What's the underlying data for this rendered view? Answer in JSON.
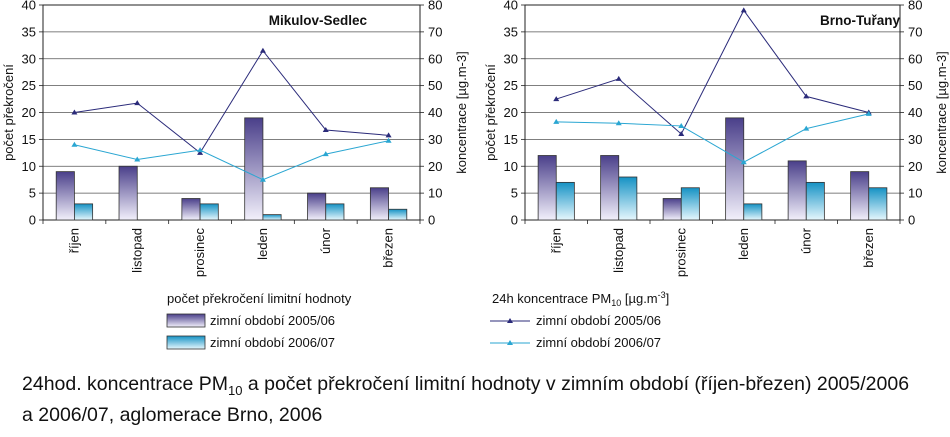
{
  "chart_data": [
    {
      "type": "bar",
      "title": "Mikulov-Sedlec",
      "categories": [
        "říjen",
        "listopad",
        "prosinec",
        "leden",
        "únor",
        "březen"
      ],
      "ylabel": "počet překročení",
      "y2label": "koncentrace [µg.m-3]",
      "ylim": [
        0,
        40
      ],
      "y2lim": [
        0,
        80
      ],
      "yticks": [
        "0",
        "5",
        "10",
        "15",
        "20",
        "25",
        "30",
        "35",
        "40"
      ],
      "y2ticks": [
        "0",
        "10",
        "20",
        "30",
        "40",
        "50",
        "60",
        "70",
        "80"
      ],
      "series": [
        {
          "name": "zimní období 2005/06",
          "kind": "bar",
          "axis": "left",
          "color": "#5a4f96",
          "values": [
            9,
            10,
            4,
            19,
            5,
            6
          ]
        },
        {
          "name": "zimní období 2006/07",
          "kind": "bar",
          "axis": "left",
          "color": "#1e9fcc",
          "values": [
            3,
            0,
            3,
            1,
            3,
            2
          ]
        },
        {
          "name": "zimní období 2005/06",
          "kind": "line",
          "axis": "right",
          "color": "#2b2b7a",
          "values": [
            40,
            43.5,
            25,
            63,
            33.5,
            31.5
          ]
        },
        {
          "name": "zimní období 2006/07",
          "kind": "line",
          "axis": "right",
          "color": "#2aa6d2",
          "values": [
            28,
            22.5,
            26,
            15,
            24.5,
            29.5
          ]
        }
      ]
    },
    {
      "type": "bar",
      "title": "Brno-Tuřany",
      "categories": [
        "říjen",
        "listopad",
        "prosinec",
        "leden",
        "únor",
        "březen"
      ],
      "ylabel": "počet překročení",
      "y2label": "koncentrace [µg.m-3]",
      "ylim": [
        0,
        40
      ],
      "y2lim": [
        0,
        80
      ],
      "yticks": [
        "0",
        "5",
        "10",
        "15",
        "20",
        "25",
        "30",
        "35",
        "40"
      ],
      "y2ticks": [
        "0",
        "10",
        "20",
        "30",
        "40",
        "50",
        "60",
        "70",
        "80"
      ],
      "series": [
        {
          "name": "zimní období 2005/06",
          "kind": "bar",
          "axis": "left",
          "color": "#5a4f96",
          "values": [
            12,
            12,
            4,
            19,
            11,
            9
          ]
        },
        {
          "name": "zimní období 2006/07",
          "kind": "bar",
          "axis": "left",
          "color": "#1e9fcc",
          "values": [
            7,
            8,
            6,
            3,
            7,
            6
          ]
        },
        {
          "name": "zimní období 2005/06",
          "kind": "line",
          "axis": "right",
          "color": "#2b2b7a",
          "values": [
            45,
            52.5,
            32,
            78,
            46,
            40
          ]
        },
        {
          "name": "zimní období 2006/07",
          "kind": "line",
          "axis": "right",
          "color": "#2aa6d2",
          "values": [
            36.5,
            36,
            35,
            21.5,
            34,
            39.5
          ]
        }
      ]
    }
  ],
  "legend": {
    "bars_title": "počet překročení limitní hodnoty",
    "lines_title": "24h koncentrace PM",
    "lines_title_sub": "10",
    "lines_title_unit": " [µg.m",
    "lines_title_sup": "-3",
    "lines_title_end": "]",
    "bar_items": [
      "zimní období 2005/06",
      "zimní období 2006/07"
    ],
    "line_items": [
      "zimní období 2005/06",
      "zimní období 2006/07"
    ]
  },
  "caption": {
    "part1": "24hod. koncentrace PM",
    "sub": "10",
    "part2": " a počet překročení limitní hodnoty v zimním období (říjen-březen) 2005/2006 a 2006/07, aglomerace Brno, 2006"
  }
}
